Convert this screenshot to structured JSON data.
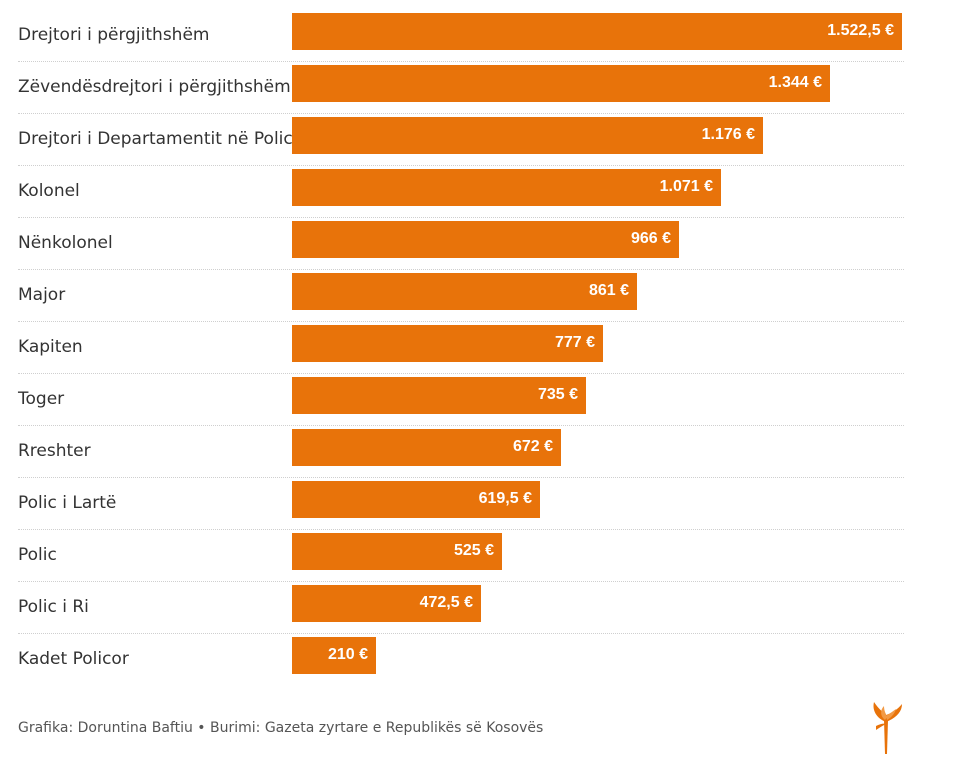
{
  "chart_data": {
    "type": "bar",
    "orientation": "horizontal",
    "categories": [
      "Drejtori i përgjithshëm",
      "Zëvendësdrejtori i përgjithshëm",
      "Drejtori i Departamentit në Polici",
      "Kolonel",
      "Nënkolonel",
      "Major",
      "Kapiten",
      "Toger",
      "Rreshter",
      "Polic i Lartë",
      "Polic",
      "Polic i Ri",
      "Kadet Policor"
    ],
    "values": [
      1522.5,
      1344,
      1176,
      1071,
      966,
      861,
      777,
      735,
      672,
      619.5,
      525,
      472.5,
      210
    ],
    "value_labels": [
      "1.522,5 €",
      "1.344 €",
      "1.176 €",
      "1.071 €",
      "966 €",
      "861 €",
      "777 €",
      "735 €",
      "672 €",
      "619,5 €",
      "525 €",
      "472,5 €",
      "210 €"
    ],
    "xlim": [
      0,
      1522.5
    ],
    "bar_color": "#e8730a"
  },
  "footer": {
    "text": "Grafika: Doruntina Baftiu • Burimi: Gazeta zyrtare e Republikës së Kosovës"
  },
  "logo": {
    "icon": "torch-logo-icon",
    "color": "#e8730a"
  }
}
